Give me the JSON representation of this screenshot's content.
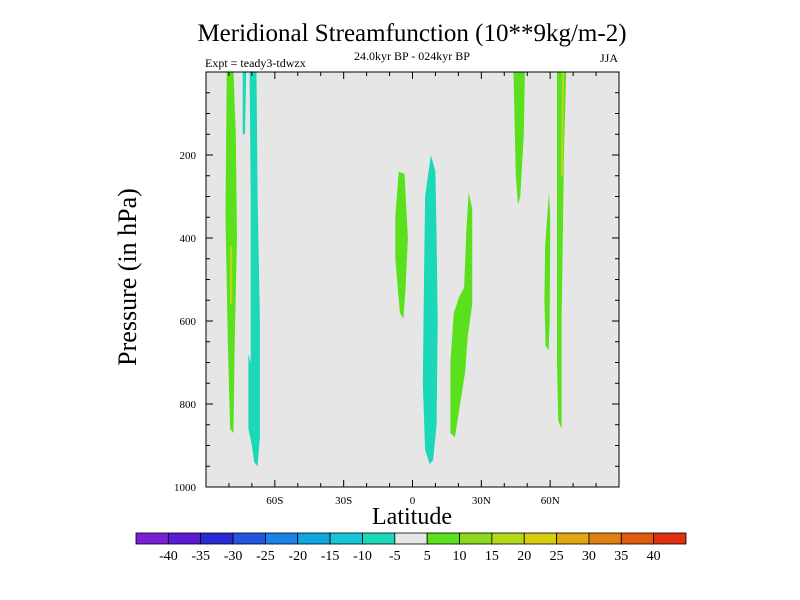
{
  "chart_data": {
    "type": "contour",
    "title": "Meridional Streamfunction (10**9kg/m-2)",
    "left_string": "Expt = teady3-tdwzx",
    "center_string": "24.0kyr BP - 024kyr BP",
    "right_string": "JJA",
    "xlabel": "Latitude",
    "ylabel": "Pressure (in hPa)",
    "xlim": [
      -90,
      90
    ],
    "ylim": [
      0,
      1000
    ],
    "y_inverted": true,
    "x_ticks": [
      {
        "value": -60,
        "label": "60S"
      },
      {
        "value": -30,
        "label": "30S"
      },
      {
        "value": 0,
        "label": "0"
      },
      {
        "value": 30,
        "label": "30N"
      },
      {
        "value": 60,
        "label": "60N"
      }
    ],
    "y_ticks": [
      {
        "value": 200,
        "label": "200"
      },
      {
        "value": 400,
        "label": "400"
      },
      {
        "value": 600,
        "label": "600"
      },
      {
        "value": 800,
        "label": "800"
      },
      {
        "value": 1000,
        "label": "1000"
      }
    ],
    "background_color": "#e6e6e6",
    "colorbar": {
      "levels": [
        -40,
        -35,
        -30,
        -25,
        -20,
        -15,
        -10,
        -5,
        5,
        10,
        15,
        20,
        25,
        30,
        35,
        40
      ],
      "labels": [
        "-40",
        "-35",
        "-30",
        "-25",
        "-20",
        "-15",
        "-10",
        "-5",
        "5",
        "10",
        "15",
        "20",
        "25",
        "30",
        "35",
        "40"
      ],
      "colors": [
        "#7b1fd6",
        "#5a1ad6",
        "#2a2ad8",
        "#2256e0",
        "#1a82e6",
        "#10a6e0",
        "#16c6d8",
        "#1ad8b8",
        "#e6e6e6",
        "#5ae01c",
        "#8cd81c",
        "#b4d81a",
        "#d8cc10",
        "#e0a810",
        "#e08010",
        "#e05a10",
        "#e03010"
      ]
    },
    "regions": [
      {
        "name": "sh-high-lat-positive-cell",
        "color": "#5ae01c",
        "points": [
          [
            -81,
            0
          ],
          [
            -78,
            0
          ],
          [
            -77,
            150
          ],
          [
            -76.5,
            400
          ],
          [
            -77.5,
            650
          ],
          [
            -78,
            870
          ],
          [
            -79.5,
            860
          ],
          [
            -80.5,
            650
          ],
          [
            -81.5,
            350
          ]
        ]
      },
      {
        "name": "sh-high-lat-core",
        "color": "#b4d81a",
        "points": [
          [
            -79.6,
            420
          ],
          [
            -78.6,
            420
          ],
          [
            -78.6,
            560
          ],
          [
            -79.6,
            560
          ]
        ]
      },
      {
        "name": "sh-negative-cell-a",
        "color": "#1ad8b8",
        "points": [
          [
            -74,
            0
          ],
          [
            -72.5,
            0
          ],
          [
            -73,
            150
          ],
          [
            -74,
            150
          ]
        ]
      },
      {
        "name": "sh-negative-cell-b",
        "color": "#1ad8b8",
        "points": [
          [
            -71,
            0
          ],
          [
            -68,
            0
          ],
          [
            -67.5,
            300
          ],
          [
            -66.5,
            600
          ],
          [
            -66.5,
            880
          ],
          [
            -67.5,
            950
          ],
          [
            -69,
            940
          ],
          [
            -70,
            900
          ],
          [
            -71.5,
            860
          ],
          [
            -71.5,
            680
          ],
          [
            -70.5,
            700
          ],
          [
            -70.5,
            300
          ]
        ]
      },
      {
        "name": "trop-south-positive-cell",
        "color": "#5ae01c",
        "points": [
          [
            -6,
            240
          ],
          [
            -3.5,
            245
          ],
          [
            -2,
            400
          ],
          [
            -3,
            520
          ],
          [
            -4,
            595
          ],
          [
            -5.5,
            580
          ],
          [
            -7.5,
            450
          ],
          [
            -7.5,
            350
          ]
        ]
      },
      {
        "name": "trop-negative-cell",
        "color": "#1ad8b8",
        "points": [
          [
            8,
            200
          ],
          [
            10,
            240
          ],
          [
            10.5,
            400
          ],
          [
            11,
            600
          ],
          [
            10.5,
            850
          ],
          [
            9,
            935
          ],
          [
            7.5,
            945
          ],
          [
            5.5,
            910
          ],
          [
            4.5,
            750
          ],
          [
            5,
            500
          ],
          [
            5.5,
            300
          ]
        ]
      },
      {
        "name": "subtrop-north-positive-cell",
        "color": "#5ae01c",
        "points": [
          [
            24.5,
            290
          ],
          [
            26,
            330
          ],
          [
            26,
            560
          ],
          [
            24,
            640
          ],
          [
            23,
            720
          ],
          [
            18.5,
            880
          ],
          [
            16.5,
            870
          ],
          [
            16.5,
            700
          ],
          [
            18,
            580
          ],
          [
            20.5,
            540
          ],
          [
            22.5,
            520
          ],
          [
            23.5,
            380
          ]
        ]
      },
      {
        "name": "nh-midlat-positive-cell",
        "color": "#5ae01c",
        "points": [
          [
            44,
            0
          ],
          [
            49,
            0
          ],
          [
            48.5,
            150
          ],
          [
            47,
            300
          ],
          [
            46,
            320
          ],
          [
            45,
            250
          ]
        ]
      },
      {
        "name": "nh-subpolar-positive-cell-a",
        "color": "#5ae01c",
        "points": [
          [
            59.5,
            290
          ],
          [
            60,
            350
          ],
          [
            59.8,
            600
          ],
          [
            59.3,
            670
          ],
          [
            58,
            660
          ],
          [
            57.5,
            550
          ],
          [
            57.8,
            420
          ]
        ]
      },
      {
        "name": "nh-subpolar-positive-cell-b",
        "color": "#5ae01c",
        "points": [
          [
            63,
            0
          ],
          [
            67,
            0
          ],
          [
            66,
            200
          ],
          [
            65.5,
            400
          ],
          [
            65,
            600
          ],
          [
            65,
            860
          ],
          [
            63.5,
            840
          ],
          [
            63,
            700
          ],
          [
            63,
            300
          ]
        ]
      },
      {
        "name": "nh-subpolar-core",
        "color": "#b4d81a",
        "points": [
          [
            65.2,
            0
          ],
          [
            66.1,
            0
          ],
          [
            65.6,
            250
          ],
          [
            64.6,
            250
          ]
        ]
      }
    ]
  }
}
